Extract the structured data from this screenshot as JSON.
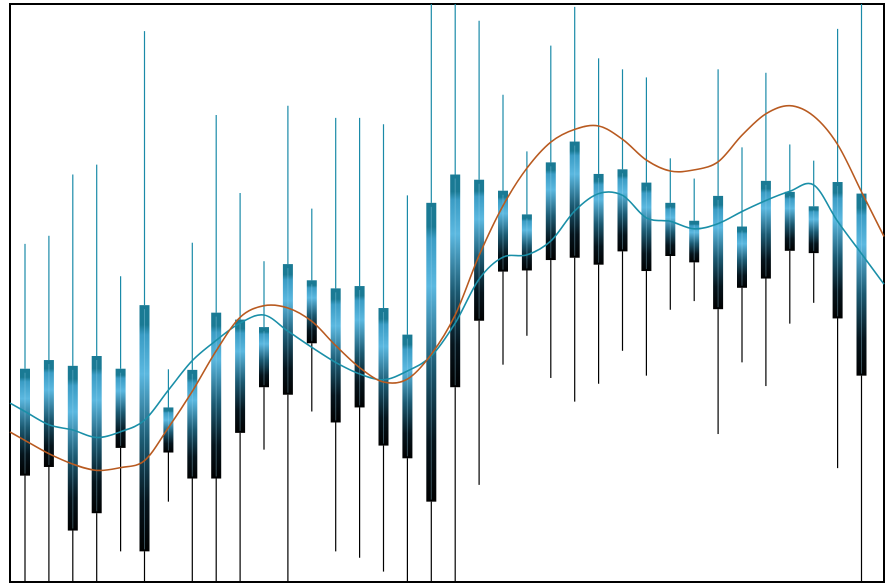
{
  "chart_data": {
    "type": "candlestick",
    "title": "",
    "xlabel": "",
    "ylabel": "",
    "ylim": [
      0,
      100
    ],
    "grid": false,
    "legend": "none",
    "colors": {
      "body_top": "#1a7a94",
      "body_mid": "#5bb8e0",
      "body_bottom": "#000000",
      "wick_up": "#1a8aa8",
      "wick_down": "#000000",
      "line_fast": "#1a8fa8",
      "line_slow": "#b85a20",
      "frame": "#000000"
    },
    "candles": [
      {
        "high": 58.5,
        "open": 36.9,
        "close": 18.4,
        "low": 0.0
      },
      {
        "high": 59.9,
        "open": 38.4,
        "close": 19.9,
        "low": 0.0
      },
      {
        "high": 70.5,
        "open": 37.4,
        "close": 8.9,
        "low": 0.0
      },
      {
        "high": 72.2,
        "open": 39.1,
        "close": 11.9,
        "low": 0.0
      },
      {
        "high": 52.9,
        "open": 36.9,
        "close": 23.2,
        "low": 5.3
      },
      {
        "high": 95.3,
        "open": 47.9,
        "close": 5.3,
        "low": 0.0
      },
      {
        "high": 36.8,
        "open": 30.2,
        "close": 22.4,
        "low": 13.9
      },
      {
        "high": 58.7,
        "open": 36.7,
        "close": 17.9,
        "low": 0.0
      },
      {
        "high": 80.8,
        "open": 46.6,
        "close": 17.9,
        "low": 0.0
      },
      {
        "high": 67.3,
        "open": 45.4,
        "close": 25.8,
        "low": 0.0
      },
      {
        "high": 55.5,
        "open": 44.1,
        "close": 33.7,
        "low": 22.9
      },
      {
        "high": 82.4,
        "open": 55.0,
        "close": 32.4,
        "low": 0.0
      },
      {
        "high": 64.6,
        "open": 52.2,
        "close": 41.3,
        "low": 29.5
      },
      {
        "high": 80.3,
        "open": 50.8,
        "close": 27.6,
        "low": 5.3
      },
      {
        "high": 80.3,
        "open": 51.2,
        "close": 30.2,
        "low": 4.2
      },
      {
        "high": 79.2,
        "open": 47.4,
        "close": 23.6,
        "low": 1.8
      },
      {
        "high": 66.9,
        "open": 42.8,
        "close": 21.4,
        "low": 0.0
      },
      {
        "high": 100.0,
        "open": 65.6,
        "close": 13.9,
        "low": 0.0
      },
      {
        "high": 100.0,
        "open": 70.5,
        "close": 33.7,
        "low": 0.0
      },
      {
        "high": 97.1,
        "open": 69.6,
        "close": 45.2,
        "low": 16.8
      },
      {
        "high": 84.3,
        "open": 67.7,
        "close": 53.7,
        "low": 37.6
      },
      {
        "high": 74.5,
        "open": 63.6,
        "close": 53.9,
        "low": 42.6
      },
      {
        "high": 92.8,
        "open": 72.6,
        "close": 55.7,
        "low": 35.3
      },
      {
        "high": 99.5,
        "open": 76.2,
        "close": 56.1,
        "low": 31.2
      },
      {
        "high": 90.6,
        "open": 70.6,
        "close": 54.9,
        "low": 34.3
      },
      {
        "high": 88.7,
        "open": 71.4,
        "close": 57.2,
        "low": 40.0
      },
      {
        "high": 87.3,
        "open": 69.1,
        "close": 53.8,
        "low": 35.7
      },
      {
        "high": 73.3,
        "open": 65.6,
        "close": 56.4,
        "low": 47.1
      },
      {
        "high": 69.8,
        "open": 62.5,
        "close": 55.3,
        "low": 48.6
      },
      {
        "high": 88.7,
        "open": 66.8,
        "close": 47.2,
        "low": 25.6
      },
      {
        "high": 75.2,
        "open": 61.5,
        "close": 50.9,
        "low": 38.0
      },
      {
        "high": 88.1,
        "open": 69.4,
        "close": 52.5,
        "low": 33.9
      },
      {
        "high": 75.7,
        "open": 67.5,
        "close": 57.3,
        "low": 44.7
      },
      {
        "high": 72.9,
        "open": 65.0,
        "close": 56.9,
        "low": 48.3
      },
      {
        "high": 95.7,
        "open": 69.2,
        "close": 45.6,
        "low": 19.7
      },
      {
        "high": 100.0,
        "open": 67.2,
        "close": 35.7,
        "low": 0.0
      }
    ],
    "series": [
      {
        "color_key": "line_fast",
        "values": [
          29.5,
          27.2,
          26.3,
          25.0,
          26.0,
          28.0,
          33.2,
          38.3,
          41.8,
          44.8,
          46.2,
          43.4,
          40.6,
          38.0,
          36.0,
          35.0,
          36.5,
          39.1,
          44.8,
          52.4,
          56.2,
          56.6,
          59.0,
          64.2,
          67.2,
          66.9,
          63.0,
          62.4,
          61.1,
          62.0,
          64.1,
          66.0,
          67.6,
          68.7,
          62.4,
          56.8
        ]
      },
      {
        "color_key": "line_slow",
        "values": [
          24.5,
          22.2,
          20.4,
          19.3,
          19.8,
          21.0,
          26.7,
          33.0,
          40.0,
          45.8,
          47.8,
          47.4,
          45.1,
          40.9,
          37.1,
          34.6,
          35.1,
          39.4,
          46.2,
          56.5,
          65.1,
          71.6,
          76.1,
          78.3,
          78.9,
          76.6,
          73.0,
          71.1,
          71.3,
          72.7,
          77.3,
          81.0,
          82.4,
          80.6,
          75.7,
          67.5
        ]
      }
    ]
  }
}
